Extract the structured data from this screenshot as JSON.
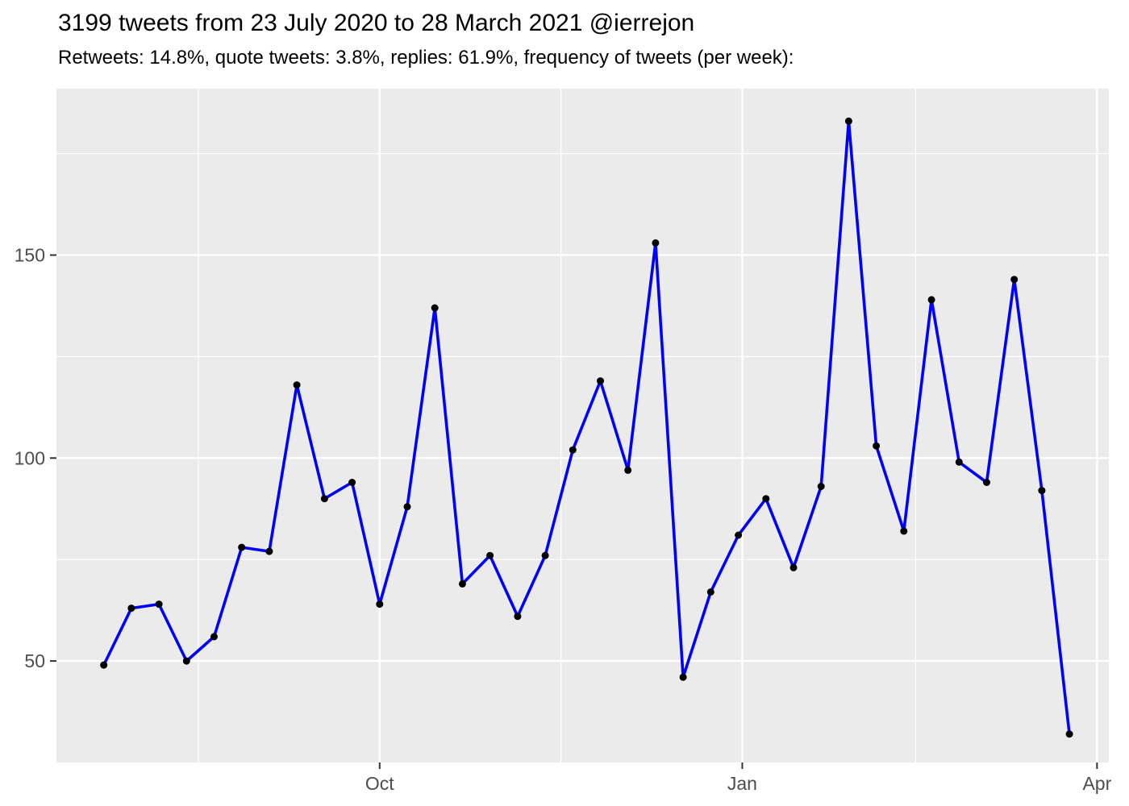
{
  "header": {
    "title": "3199 tweets from 23 July 2020 to 28 March 2021 @ierrejon",
    "subtitle": "Retweets: 14.8%, quote tweets: 3.8%, replies: 61.9%, frequency of tweets (per week):"
  },
  "chart_data": {
    "type": "line",
    "title": "3199 tweets from 23 July 2020 to 28 March 2021 @ierrejon",
    "subtitle": "Retweets: 14.8%, quote tweets: 3.8%, replies: 61.9%, frequency of tweets (per week):",
    "xlabel": "",
    "ylabel": "",
    "series_name": "tweets-per-week",
    "x": [
      "2020-07-23",
      "2020-07-30",
      "2020-08-06",
      "2020-08-13",
      "2020-08-20",
      "2020-08-27",
      "2020-09-03",
      "2020-09-10",
      "2020-09-17",
      "2020-09-24",
      "2020-10-01",
      "2020-10-08",
      "2020-10-15",
      "2020-10-22",
      "2020-10-29",
      "2020-11-05",
      "2020-11-12",
      "2020-11-19",
      "2020-11-26",
      "2020-12-03",
      "2020-12-10",
      "2020-12-17",
      "2020-12-24",
      "2020-12-31",
      "2021-01-07",
      "2021-01-14",
      "2021-01-21",
      "2021-01-28",
      "2021-02-04",
      "2021-02-11",
      "2021-02-18",
      "2021-02-25",
      "2021-03-04",
      "2021-03-11",
      "2021-03-18",
      "2021-03-25"
    ],
    "values": [
      49,
      63,
      64,
      50,
      56,
      78,
      77,
      118,
      90,
      94,
      64,
      88,
      137,
      69,
      76,
      61,
      76,
      102,
      119,
      97,
      153,
      46,
      67,
      81,
      90,
      73,
      93,
      183,
      103,
      82,
      139,
      99,
      94,
      144,
      92,
      32
    ],
    "x_ticks": [
      {
        "label": "Oct",
        "date": "2020-10-01"
      },
      {
        "label": "Jan",
        "date": "2021-01-01"
      },
      {
        "label": "Apr",
        "date": "2021-04-01"
      }
    ],
    "x_minor": [
      "2020-08-16",
      "2020-11-16",
      "2021-02-14"
    ],
    "y_ticks": [
      50,
      100,
      150
    ],
    "y_minor": [
      75,
      125,
      175
    ],
    "xlim": [
      "2020-07-11",
      "2021-04-04"
    ],
    "ylim": [
      25,
      191
    ],
    "grid": true,
    "legend": "none",
    "colors": {
      "line": "#0000ff",
      "point": "#000000",
      "panel": "#ebebeb",
      "grid": "#ffffff",
      "axis_text": "#4d4d4d",
      "tick": "#333333",
      "title_text": "#000000"
    }
  }
}
